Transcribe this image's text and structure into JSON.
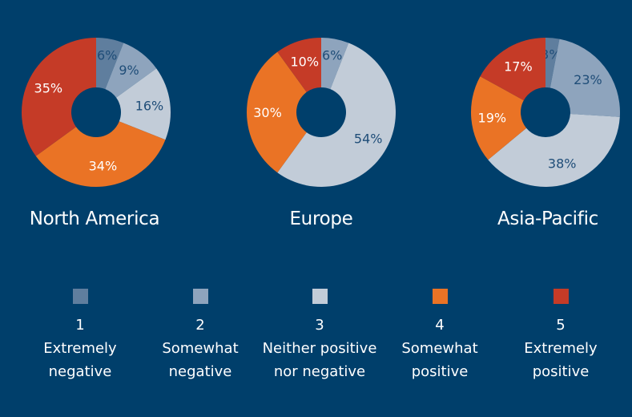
{
  "chart_data": [
    {
      "type": "pie",
      "title": "North America",
      "categories": [
        "1",
        "2",
        "3",
        "4",
        "5"
      ],
      "values": [
        6,
        9,
        16,
        34,
        35
      ],
      "labels": [
        "6%",
        "9%",
        "16%",
        "34%",
        "35%"
      ]
    },
    {
      "type": "pie",
      "title": "Europe",
      "categories": [
        "1",
        "2",
        "3",
        "4",
        "5"
      ],
      "values": [
        0,
        6,
        54,
        30,
        10
      ],
      "labels": [
        "",
        "6%",
        "54%",
        "30%",
        "10%"
      ]
    },
    {
      "type": "pie",
      "title": "Asia-Pacific",
      "categories": [
        "1",
        "2",
        "3",
        "4",
        "5"
      ],
      "values": [
        3,
        23,
        38,
        19,
        17
      ],
      "labels": [
        "3%",
        "23%",
        "38%",
        "19%",
        "17%"
      ]
    }
  ],
  "legend": [
    {
      "num": "1",
      "label": "Extremely\nnegative",
      "color": "#5f7e9e"
    },
    {
      "num": "2",
      "label": "Somewhat\nnegative",
      "color": "#8ea4bd"
    },
    {
      "num": "3",
      "label": "Neither positive\nnor negative",
      "color": "#c2ccd8"
    },
    {
      "num": "4",
      "label": "Somewhat\npositive",
      "color": "#ea7325"
    },
    {
      "num": "5",
      "label": "Extremely\npositive",
      "color": "#c53b27"
    }
  ],
  "colors": {
    "background": "#003f6b",
    "label_dark": "#1f4d78",
    "label_light": "#ffffff"
  }
}
